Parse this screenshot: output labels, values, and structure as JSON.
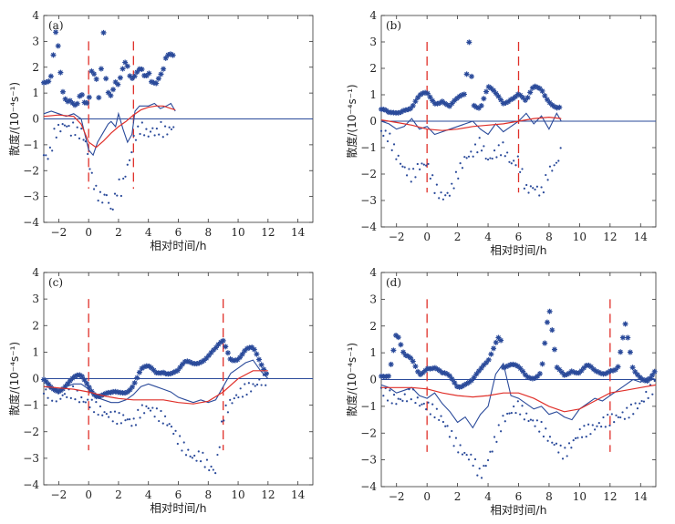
{
  "chart_data": [
    {
      "type": "line",
      "panel_label": "(a)",
      "xlabel": "相对时间/h",
      "ylabel": "散度/(10⁻⁴s⁻¹)",
      "xlim": [
        -3,
        15
      ],
      "ylim": [
        -4,
        4
      ],
      "xticks": [
        "−2",
        "0",
        "2",
        "4",
        "6",
        "8",
        "10",
        "12",
        "14"
      ],
      "yticks": [
        "−4",
        "−3",
        "−2",
        "−1",
        "0",
        "1",
        "2",
        "3",
        "4"
      ],
      "markers": [
        0,
        3
      ],
      "series": [
        {
          "name": "upper",
          "x": [
            -3,
            -2.7,
            -2.5,
            -2.2,
            -2,
            -1.8,
            -1.5,
            -1.2,
            -1,
            -0.8,
            -0.5,
            -0.3,
            0,
            0.2,
            0.5,
            0.7,
            1,
            1.2,
            1.5,
            1.8,
            2,
            2.3,
            2.5,
            2.8,
            3,
            3.2,
            3.5,
            3.8,
            4,
            4.2,
            4.5,
            4.8,
            5,
            5.2,
            5.5,
            5.8
          ],
          "y": [
            1.4,
            1.3,
            1.5,
            3.2,
            2.6,
            1.2,
            0.8,
            0.9,
            0.7,
            0.6,
            1.0,
            0.5,
            0.4,
            1.7,
            1.6,
            0.8,
            3.5,
            1.3,
            1.0,
            1.4,
            1.2,
            1.8,
            2.1,
            1.5,
            1.6,
            1.9,
            2.2,
            1.7,
            1.9,
            1.4,
            1.2,
            1.5,
            1.8,
            2.4,
            2.6,
            2.6
          ]
        },
        {
          "name": "lower",
          "x": [
            -3,
            -2.8,
            -2.5,
            -2.3,
            -2,
            -1.8,
            -1.5,
            -1.2,
            -1,
            -0.7,
            -0.5,
            -0.2,
            0,
            0.2,
            0.5,
            0.7,
            1,
            1.2,
            1.5,
            1.8,
            2,
            2.2,
            2.5,
            2.8,
            3,
            3.2,
            3.5,
            3.8,
            4,
            4.3,
            4.5,
            4.8,
            5,
            5.5,
            5.8
          ],
          "y": [
            -1.4,
            -1.5,
            -1.2,
            -0.6,
            -0.4,
            -0.3,
            -0.2,
            -0.5,
            -0.3,
            -0.6,
            -0.5,
            -0.9,
            -1.6,
            -2.2,
            -2.8,
            -3.0,
            -3.1,
            -2.9,
            -3.6,
            -3.0,
            -2.5,
            -2.8,
            -2.0,
            -1.5,
            -0.8,
            -0.6,
            -0.3,
            -0.5,
            -0.6,
            -0.4,
            -0.6,
            -0.3,
            -0.5,
            -0.4,
            -0.2
          ]
        },
        {
          "name": "mean",
          "x": [
            -3,
            -2.5,
            -2,
            -1.5,
            -1,
            -0.5,
            0,
            0.3,
            0.6,
            1,
            1.3,
            1.5,
            1.8,
            2,
            2.3,
            2.6,
            2.9,
            3.1,
            3.4,
            3.7,
            4,
            4.4,
            4.8,
            5.2,
            5.5,
            5.8
          ],
          "y": [
            0.2,
            0.3,
            0.2,
            0.1,
            0.2,
            0.0,
            -1.2,
            -1.4,
            -0.9,
            -0.5,
            -0.2,
            -0.1,
            -0.3,
            0.2,
            -0.4,
            -0.9,
            -0.6,
            0.3,
            0.5,
            0.5,
            0.5,
            0.6,
            0.4,
            0.5,
            0.6,
            0.3
          ]
        },
        {
          "name": "fit",
          "x": [
            -3,
            -2,
            -1,
            -0.5,
            0,
            0.5,
            1,
            1.5,
            2,
            2.5,
            3,
            3.5,
            4,
            4.5,
            5,
            5.5,
            5.8
          ],
          "y": [
            0.1,
            0.15,
            0.1,
            -0.2,
            -0.9,
            -1.1,
            -0.85,
            -0.55,
            -0.3,
            -0.1,
            0.15,
            0.35,
            0.45,
            0.5,
            0.5,
            0.4,
            0.35
          ]
        }
      ]
    },
    {
      "type": "line",
      "panel_label": "(b)",
      "xlabel": "相对时间/h",
      "ylabel": "散度/(10⁻⁴s⁻¹)",
      "xlim": [
        -3,
        15
      ],
      "ylim": [
        -4,
        4
      ],
      "xticks": [
        "−2",
        "0",
        "2",
        "4",
        "6",
        "8",
        "10",
        "12",
        "14"
      ],
      "yticks": [
        "−4",
        "−3",
        "−2",
        "−1",
        "0",
        "1",
        "2",
        "3",
        "4"
      ],
      "markers": [
        0,
        6
      ],
      "series": [
        {
          "name": "upper",
          "x": [
            -3,
            -2.5,
            -2,
            -1.5,
            -1,
            -0.5,
            0,
            0.5,
            1,
            1.5,
            2,
            2.5,
            2.8,
            3,
            3.5,
            4,
            4.5,
            5,
            5.5,
            6,
            6.5,
            7,
            7.5,
            8,
            8.5,
            8.8
          ],
          "y": [
            0.3,
            0.2,
            0.4,
            0.6,
            0.5,
            0.8,
            1.0,
            0.8,
            0.9,
            0.5,
            0.7,
            1.0,
            3.4,
            0.8,
            0.6,
            1.2,
            0.9,
            0.7,
            1.0,
            1.1,
            0.6,
            1.2,
            1.3,
            0.9,
            0.5,
            0.4
          ]
        },
        {
          "name": "lower",
          "x": [
            -3,
            -2.5,
            -2,
            -1.5,
            -1,
            -0.5,
            0,
            0.5,
            1,
            1.5,
            2,
            2.5,
            3,
            3.5,
            4,
            4.5,
            5,
            5.5,
            6,
            6.5,
            7,
            7.5,
            8,
            8.5,
            8.8
          ],
          "y": [
            -0.4,
            -0.6,
            -1.3,
            -1.8,
            -2.1,
            -1.7,
            -1.6,
            -2.5,
            -2.9,
            -2.7,
            -2.0,
            -1.4,
            -1.2,
            -0.8,
            -1.5,
            -1.2,
            -1.0,
            -1.6,
            -1.5,
            -2.6,
            -2.5,
            -2.7,
            -1.9,
            -1.6,
            -1.1
          ]
        },
        {
          "name": "mean",
          "x": [
            -3,
            -2.5,
            -2,
            -1.5,
            -1,
            -0.5,
            0,
            0.5,
            1,
            1.5,
            2,
            2.5,
            3,
            3.5,
            4,
            4.5,
            5,
            5.5,
            6,
            6.5,
            7,
            7.5,
            8,
            8.5,
            8.8
          ],
          "y": [
            0.0,
            -0.1,
            -0.3,
            -0.2,
            0.1,
            -0.3,
            -0.2,
            -0.5,
            -0.4,
            -0.3,
            -0.2,
            -0.1,
            0.0,
            -0.3,
            -0.5,
            -0.1,
            -0.4,
            -0.2,
            0.0,
            0.3,
            -0.1,
            0.2,
            -0.3,
            0.3,
            0.0
          ]
        },
        {
          "name": "fit",
          "x": [
            -3,
            -2,
            -1,
            0,
            1,
            2,
            3,
            4,
            5,
            6,
            7,
            8,
            8.8
          ],
          "y": [
            0.05,
            -0.05,
            -0.15,
            -0.3,
            -0.35,
            -0.3,
            -0.2,
            -0.15,
            -0.1,
            0.0,
            0.1,
            0.15,
            0.1
          ]
        }
      ]
    },
    {
      "type": "line",
      "panel_label": "(c)",
      "xlabel": "相对时间/h",
      "ylabel": "散度/(10⁻⁴s⁻¹)",
      "xlim": [
        -3,
        15
      ],
      "ylim": [
        -4,
        4
      ],
      "xticks": [
        "−2",
        "0",
        "2",
        "4",
        "6",
        "8",
        "10",
        "12",
        "14"
      ],
      "yticks": [
        "−4",
        "−3",
        "−2",
        "−1",
        "0",
        "1",
        "2",
        "3",
        "4"
      ],
      "markers": [
        0,
        9
      ],
      "series": [
        {
          "name": "upper",
          "x": [
            -3,
            -2.5,
            -2,
            -1.5,
            -1,
            -0.5,
            0,
            0.5,
            1,
            1.5,
            2,
            2.5,
            3,
            3.5,
            4,
            4.5,
            5,
            5.5,
            6,
            6.5,
            7,
            7.5,
            8,
            8.5,
            9,
            9.5,
            10,
            10.5,
            11,
            11.5,
            12
          ],
          "y": [
            -0.2,
            -0.3,
            -0.3,
            -0.2,
            -0.1,
            0.0,
            -0.2,
            -0.5,
            -0.6,
            -0.7,
            -0.6,
            -0.4,
            -0.1,
            0.3,
            0.3,
            0.2,
            0.4,
            0.3,
            0.2,
            0.5,
            0.6,
            0.8,
            0.9,
            1.0,
            1.3,
            0.8,
            0.9,
            1.1,
            1.0,
            0.5,
            0.2
          ]
        },
        {
          "name": "lower",
          "x": [
            -3,
            -2.5,
            -2,
            -1.5,
            -1,
            -0.5,
            0,
            0.5,
            1,
            1.5,
            2,
            2.5,
            3,
            3.5,
            4,
            4.5,
            5,
            5.5,
            6,
            6.5,
            7,
            7.5,
            8,
            8.5,
            9,
            9.5,
            10,
            10.5,
            11,
            11.5,
            12
          ],
          "y": [
            -0.5,
            -0.6,
            -0.7,
            -0.6,
            -0.5,
            -0.8,
            -0.9,
            -1.1,
            -1.3,
            -1.4,
            -1.5,
            -1.5,
            -1.7,
            -1.2,
            -1.1,
            -1.3,
            -1.5,
            -1.8,
            -2.3,
            -2.7,
            -3.0,
            -2.9,
            -3.3,
            -3.5,
            -1.4,
            -0.9,
            -0.6,
            -0.4,
            -0.3,
            -0.1,
            0.0
          ]
        },
        {
          "name": "mean",
          "x": [
            -3,
            -2.5,
            -2,
            -1.5,
            -1,
            -0.5,
            0,
            0.5,
            1,
            1.5,
            2,
            2.5,
            3,
            3.5,
            4,
            4.5,
            5,
            5.5,
            6,
            6.5,
            7,
            7.5,
            8,
            8.5,
            9,
            9.5,
            10,
            10.5,
            11,
            11.5,
            12
          ],
          "y": [
            -0.3,
            -0.35,
            -0.4,
            -0.3,
            -0.2,
            -0.2,
            -0.4,
            -0.7,
            -0.8,
            -0.9,
            -0.9,
            -0.8,
            -0.6,
            -0.3,
            -0.2,
            -0.3,
            -0.4,
            -0.5,
            -0.7,
            -0.8,
            -0.9,
            -0.8,
            -0.9,
            -0.8,
            -0.3,
            0.2,
            0.4,
            0.6,
            0.7,
            0.3,
            0.0
          ]
        },
        {
          "name": "fit",
          "x": [
            -3,
            -2,
            -1,
            0,
            1,
            2,
            3,
            4,
            5,
            6,
            7,
            8,
            9,
            10,
            11,
            12
          ],
          "y": [
            -0.3,
            -0.35,
            -0.4,
            -0.5,
            -0.65,
            -0.75,
            -0.8,
            -0.8,
            -0.8,
            -0.9,
            -0.95,
            -0.85,
            -0.5,
            0.0,
            0.3,
            0.3
          ]
        }
      ]
    },
    {
      "type": "line",
      "panel_label": "(d)",
      "xlabel": "相对时间/h",
      "ylabel": "散度/(10⁻⁴s⁻¹)",
      "xlim": [
        -3,
        15
      ],
      "ylim": [
        -4,
        4
      ],
      "xticks": [
        "−2",
        "0",
        "2",
        "4",
        "6",
        "8",
        "10",
        "12",
        "14"
      ],
      "yticks": [
        "−4",
        "−3",
        "−2",
        "−1",
        "0",
        "1",
        "2",
        "3",
        "4"
      ],
      "markers": [
        0,
        12
      ],
      "series": [
        {
          "name": "upper",
          "x": [
            -3,
            -2.5,
            -2,
            -1.5,
            -1,
            -0.5,
            0,
            0.5,
            1,
            1.5,
            2,
            2.5,
            3,
            3.5,
            4,
            4.5,
            4.8,
            5,
            5.5,
            6,
            6.5,
            7,
            7.5,
            8,
            8.5,
            9,
            9.5,
            10,
            10.5,
            11,
            11.5,
            12,
            12.5,
            13,
            13.5,
            14,
            14.5,
            15
          ],
          "y": [
            0.1,
            0.3,
            1.9,
            0.8,
            0.6,
            0.2,
            0.6,
            0.5,
            0.1,
            0.0,
            -0.2,
            0.0,
            0.0,
            0.2,
            0.6,
            1.5,
            1.9,
            0.6,
            0.5,
            0.3,
            0.1,
            0.2,
            0.4,
            2.6,
            0.3,
            0.2,
            0.5,
            0.3,
            0.4,
            0.2,
            0.3,
            0.5,
            0.4,
            1.9,
            0.3,
            0.2,
            0.1,
            0.3
          ]
        },
        {
          "name": "lower",
          "x": [
            -3,
            -2.5,
            -2,
            -1.5,
            -1,
            -0.5,
            0,
            0.5,
            1,
            1.5,
            2,
            2.5,
            3,
            3.5,
            4,
            4.5,
            5,
            5.5,
            6,
            6.5,
            7,
            7.5,
            8,
            8.5,
            9,
            9.5,
            10,
            10.5,
            11,
            11.5,
            12,
            12.5,
            13,
            13.5,
            14,
            14.5,
            15
          ],
          "y": [
            -0.4,
            -0.6,
            -0.8,
            -0.7,
            -0.5,
            -0.9,
            -1.0,
            -1.2,
            -1.5,
            -2.0,
            -2.5,
            -2.8,
            -3.0,
            -3.6,
            -3.0,
            -2.2,
            -1.5,
            -1.2,
            -1.0,
            -1.4,
            -1.6,
            -1.8,
            -2.2,
            -2.5,
            -2.8,
            -2.4,
            -2.0,
            -1.9,
            -1.8,
            -1.6,
            -1.5,
            -1.4,
            -1.3,
            -1.1,
            -0.9,
            -0.5,
            -0.2
          ]
        },
        {
          "name": "mean",
          "x": [
            -3,
            -2.5,
            -2,
            -1.5,
            -1,
            -0.5,
            0,
            0.5,
            1,
            1.5,
            2,
            2.5,
            3,
            3.5,
            4,
            4.5,
            5,
            5.5,
            6,
            6.5,
            7,
            7.5,
            8,
            8.5,
            9,
            9.5,
            10,
            10.5,
            11,
            11.5,
            12,
            12.5,
            13,
            13.5,
            14,
            14.5,
            15
          ],
          "y": [
            -0.2,
            -0.3,
            -0.5,
            -0.4,
            -0.3,
            -0.6,
            -0.7,
            -0.5,
            -0.9,
            -1.2,
            -1.6,
            -1.4,
            -1.8,
            -1.3,
            -1.0,
            0.2,
            0.6,
            -0.6,
            -0.7,
            -0.9,
            -1.1,
            -1.0,
            -1.3,
            -1.2,
            -1.4,
            -1.5,
            -1.1,
            -0.9,
            -0.7,
            -0.8,
            -0.6,
            -0.4,
            -0.2,
            0.0,
            -0.1,
            0.1,
            0.0
          ]
        },
        {
          "name": "fit",
          "x": [
            -3,
            -2,
            -1,
            0,
            1,
            2,
            3,
            4,
            5,
            6,
            7,
            8,
            9,
            10,
            11,
            12,
            13,
            14,
            15
          ],
          "y": [
            -0.3,
            -0.3,
            -0.3,
            -0.35,
            -0.5,
            -0.6,
            -0.65,
            -0.6,
            -0.5,
            -0.5,
            -0.7,
            -1.0,
            -1.2,
            -1.1,
            -0.8,
            -0.5,
            -0.4,
            -0.3,
            -0.2
          ]
        }
      ]
    }
  ],
  "colors": {
    "star": "#2a4a9a",
    "dot": "#2a4a9a",
    "mean": "#2a4a9a",
    "fit": "#e0302a",
    "marker": "#e0302a",
    "zero": "#2a4a9a"
  }
}
